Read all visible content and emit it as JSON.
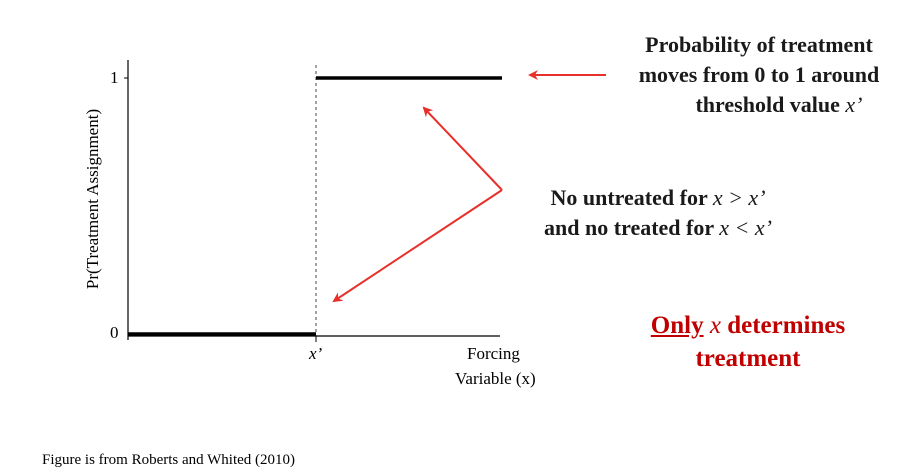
{
  "plot": {
    "ylabel": "Pr(Treatment Assignment)",
    "y_tick_1": "1",
    "y_tick_0": "0",
    "x_tick_threshold": "x’",
    "xlabel_line1": "Forcing",
    "xlabel_line2": "Variable (x)"
  },
  "callout_probability": {
    "line1": "Probability of treatment",
    "line2": "moves from 0 to 1 around",
    "line3_prefix": "threshold value ",
    "line3_var": "x’"
  },
  "callout_no_untreated": {
    "line1_prefix": "No untreated for ",
    "line1_expr": "x > x’",
    "line2_prefix": "and no treated for ",
    "line2_expr": "x < x’"
  },
  "callout_only": {
    "word_only": "Only",
    "var": "x",
    "rest": " determines",
    "line2": "treatment"
  },
  "footer": {
    "source": "Figure is from Roberts and Whited (2010)"
  },
  "colors": {
    "arrow": "#e8302a",
    "emphasis": "#c00000",
    "line": "#000000"
  }
}
